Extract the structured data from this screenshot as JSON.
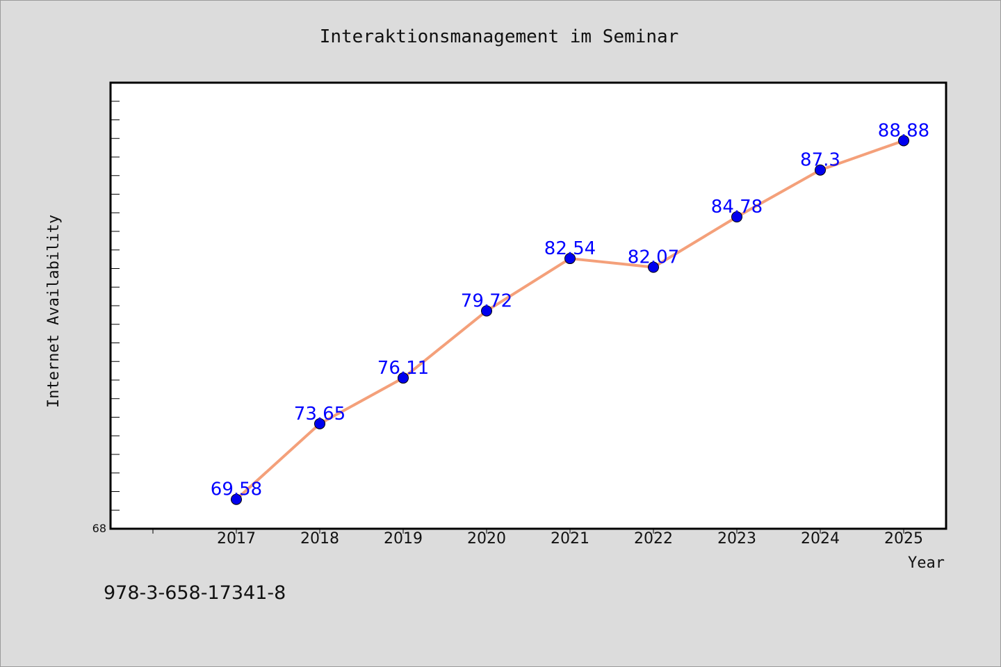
{
  "chart_data": {
    "type": "line",
    "title": "Interaktionsmanagement im Seminar",
    "xlabel": "Year",
    "ylabel": "Internet Availability",
    "categories": [
      "2017",
      "2018",
      "2019",
      "2020",
      "2021",
      "2022",
      "2023",
      "2024",
      "2025"
    ],
    "series": [
      {
        "values": [
          69.58,
          73.65,
          76.11,
          79.72,
          82.54,
          82.07,
          84.78,
          87.3,
          88.88
        ],
        "labels": [
          "69.58",
          "73.65",
          "76.11",
          "79.72",
          "82.54",
          "82.07",
          "84.78",
          "87.3",
          "88.88"
        ]
      }
    ],
    "ylim": [
      68,
      92
    ],
    "y_min_label": "68",
    "grid": false,
    "colors": {
      "line": "#f4a07a",
      "marker": "#0000ee",
      "label": "#0000ff",
      "background": "#dcdcdc",
      "plot_bg": "#ffffff"
    }
  },
  "footer": {
    "text": "978-3-658-17341-8"
  }
}
